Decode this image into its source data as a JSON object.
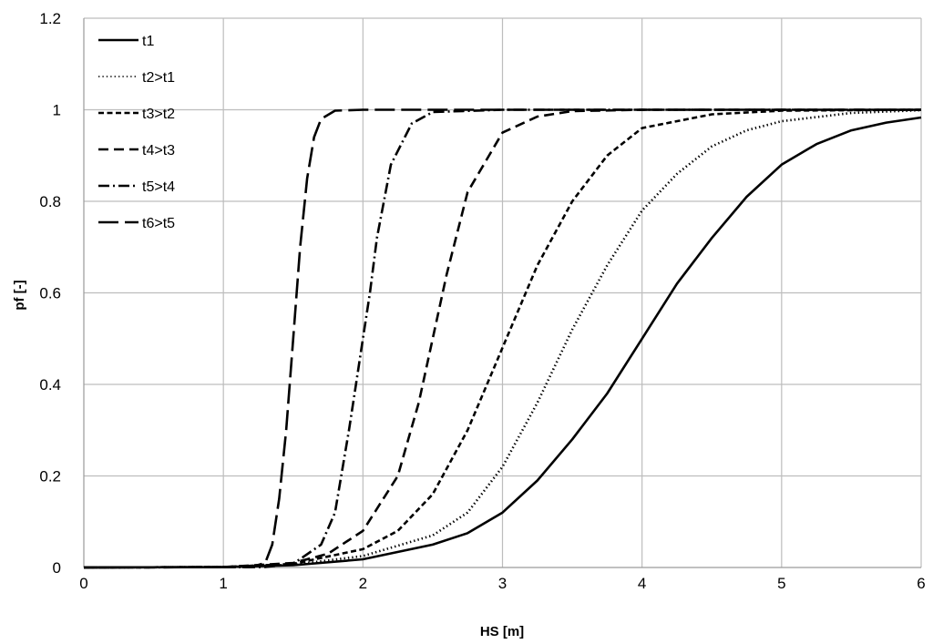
{
  "chart_data": {
    "type": "line",
    "title": "",
    "xlabel": "HS [m]",
    "ylabel": "pf [-]",
    "xlim": [
      0,
      6
    ],
    "ylim": [
      0,
      1.2
    ],
    "xticks": [
      0,
      1,
      2,
      3,
      4,
      5,
      6
    ],
    "yticks": [
      0,
      0.2,
      0.4,
      0.6,
      0.8,
      1,
      1.2
    ],
    "xtick_labels": [
      "0",
      "1",
      "2",
      "3",
      "4",
      "5",
      "6"
    ],
    "ytick_labels": [
      "0",
      "0.2",
      "0.4",
      "0.6",
      "0.8",
      "1",
      "1.2"
    ],
    "grid": true,
    "legend_position": "top-left",
    "series": [
      {
        "name": "t1",
        "dash": "solid",
        "x": [
          0,
          1,
          1.5,
          2,
          2.5,
          2.75,
          3,
          3.25,
          3.5,
          3.75,
          4,
          4.25,
          4.5,
          4.75,
          5,
          5.25,
          5.5,
          5.75,
          6
        ],
        "y": [
          0,
          0.001,
          0.005,
          0.018,
          0.05,
          0.075,
          0.12,
          0.19,
          0.28,
          0.38,
          0.5,
          0.62,
          0.72,
          0.81,
          0.88,
          0.925,
          0.955,
          0.972,
          0.983
        ]
      },
      {
        "name": "t2>t1",
        "dash": "dotted",
        "x": [
          0,
          1,
          1.5,
          2,
          2.5,
          2.75,
          3,
          3.25,
          3.5,
          3.75,
          4,
          4.25,
          4.5,
          4.75,
          5,
          5.5,
          6
        ],
        "y": [
          0,
          0.001,
          0.006,
          0.025,
          0.07,
          0.12,
          0.22,
          0.36,
          0.52,
          0.66,
          0.78,
          0.86,
          0.92,
          0.955,
          0.975,
          0.993,
          0.999
        ]
      },
      {
        "name": "t3>t2",
        "dash": "short-dash",
        "x": [
          0,
          1,
          1.5,
          2,
          2.25,
          2.5,
          2.75,
          3,
          3.25,
          3.5,
          3.75,
          4,
          4.5,
          5,
          6
        ],
        "y": [
          0,
          0.001,
          0.008,
          0.04,
          0.08,
          0.16,
          0.3,
          0.48,
          0.66,
          0.8,
          0.9,
          0.96,
          0.99,
          0.998,
          1
        ]
      },
      {
        "name": "t4>t3",
        "dash": "dash",
        "x": [
          0,
          1,
          1.5,
          1.75,
          2,
          2.25,
          2.4,
          2.5,
          2.6,
          2.75,
          3,
          3.25,
          3.5,
          4,
          6
        ],
        "y": [
          0,
          0.001,
          0.01,
          0.03,
          0.08,
          0.2,
          0.36,
          0.5,
          0.64,
          0.82,
          0.95,
          0.985,
          0.997,
          1,
          1
        ]
      },
      {
        "name": "t5>t4",
        "dash": "dash-dot",
        "x": [
          0,
          1.3,
          1.5,
          1.7,
          1.8,
          1.9,
          1.95,
          2,
          2.05,
          2.1,
          2.2,
          2.35,
          2.5,
          3,
          6
        ],
        "y": [
          0,
          0.001,
          0.008,
          0.05,
          0.12,
          0.3,
          0.4,
          0.5,
          0.6,
          0.72,
          0.88,
          0.97,
          0.995,
          1,
          1
        ]
      },
      {
        "name": "t6>t5",
        "dash": "long-dash",
        "x": [
          0,
          1.2,
          1.3,
          1.35,
          1.4,
          1.45,
          1.5,
          1.55,
          1.6,
          1.65,
          1.7,
          1.8,
          2,
          6
        ],
        "y": [
          0,
          0.001,
          0.01,
          0.05,
          0.15,
          0.3,
          0.5,
          0.7,
          0.85,
          0.94,
          0.98,
          0.998,
          1,
          1
        ]
      }
    ]
  }
}
